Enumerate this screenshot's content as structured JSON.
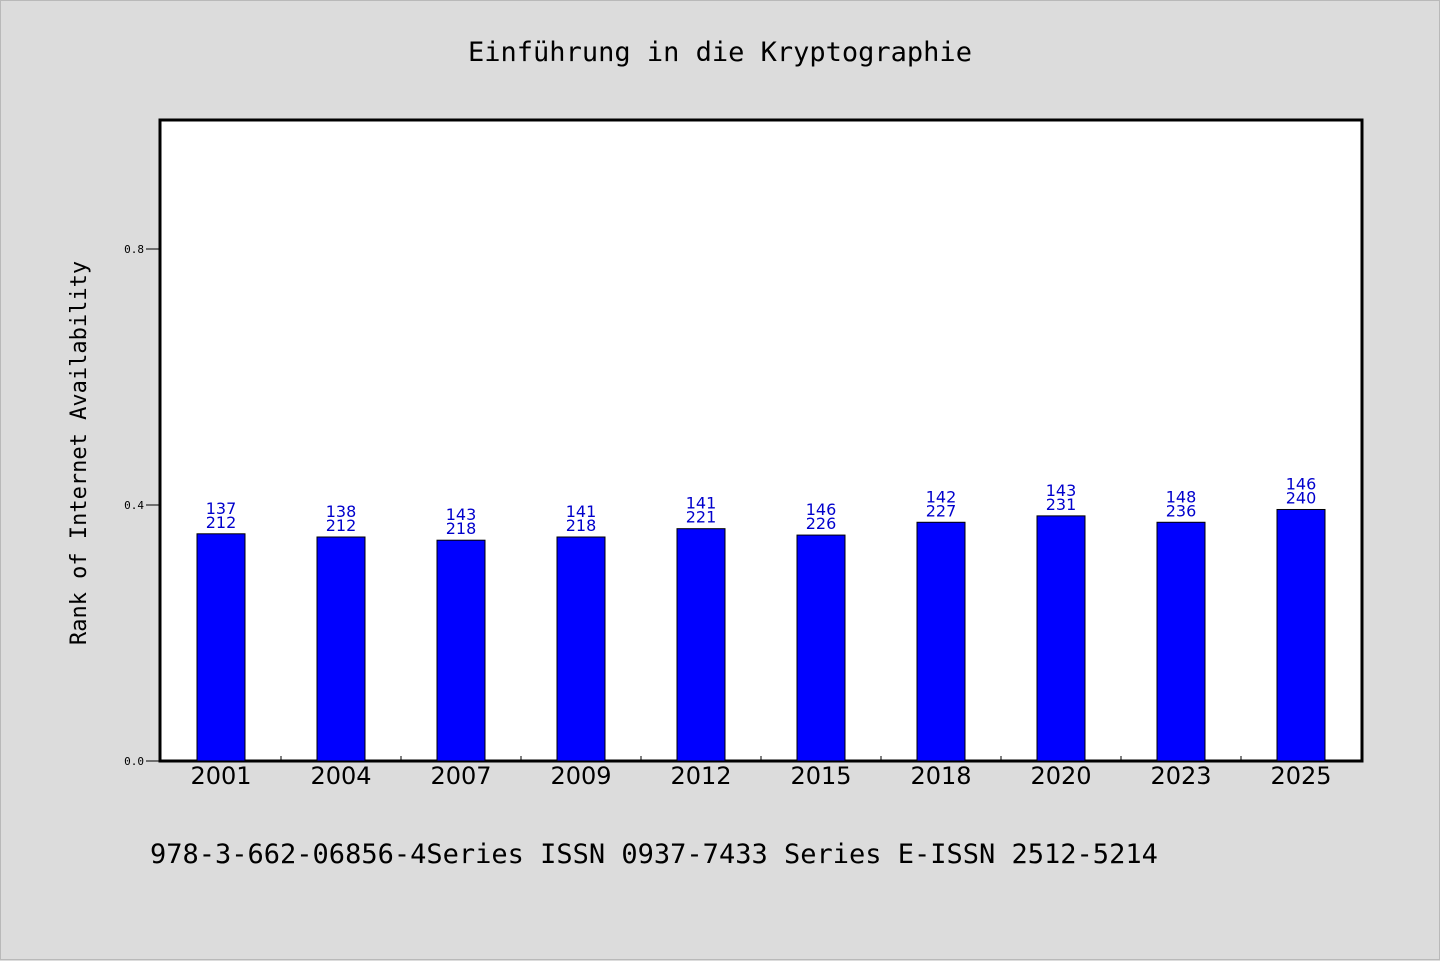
{
  "chart_data": {
    "type": "bar",
    "title": "Einführung in die Kryptographie",
    "xlabel": "",
    "ylabel": "Rank of Internet Availability",
    "categories": [
      "2001",
      "2004",
      "2007",
      "2009",
      "2012",
      "2015",
      "2018",
      "2020",
      "2023",
      "2025"
    ],
    "values": [
      0.355,
      0.35,
      0.345,
      0.35,
      0.363,
      0.353,
      0.373,
      0.383,
      0.373,
      0.393
    ],
    "labels_top": [
      "137",
      "138",
      "143",
      "141",
      "141",
      "146",
      "142",
      "143",
      "148",
      "146"
    ],
    "labels_bottom": [
      "212",
      "212",
      "218",
      "218",
      "221",
      "226",
      "227",
      "231",
      "236",
      "240"
    ],
    "ylim": [
      0,
      1.0
    ],
    "yticks": [
      0.0,
      0.4,
      0.8
    ],
    "ytick_labels": [
      "0.0",
      "0.4",
      "0.8"
    ],
    "grid": false,
    "colors": {
      "bar": "#0000ff",
      "label": "#0000cc",
      "background": "#dcdcdc",
      "plot": "#ffffff"
    }
  },
  "footer": "978-3-662-06856-4Series ISSN 0937-7433 Series E-ISSN 2512-5214"
}
